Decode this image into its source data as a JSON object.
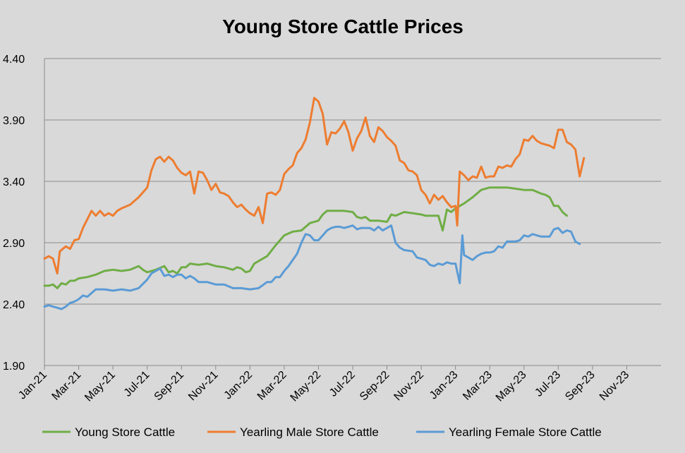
{
  "chart_data": {
    "type": "line",
    "title": "Young Store Cattle Prices",
    "xlabel": "",
    "ylabel": "",
    "ylim": [
      1.9,
      4.4
    ],
    "yticks": [
      "1.90",
      "2.40",
      "2.90",
      "3.40",
      "3.90",
      "4.40"
    ],
    "xticks": [
      "Jan-21",
      "Mar-21",
      "May-21",
      "Jul-21",
      "Sep-21",
      "Nov-21",
      "Jan-22",
      "Mar-22",
      "May-22",
      "Jul-22",
      "Sep-22",
      "Nov-22",
      "Jan-23",
      "Mar-23",
      "May-23",
      "Jul-23",
      "Sep-23",
      "Nov-23"
    ],
    "x_range_months": [
      0,
      36
    ],
    "grid": "horizontal",
    "legend_position": "bottom",
    "series": [
      {
        "name": "Young Store Cattle",
        "color": "#70ad47",
        "points": [
          [
            0,
            2.55
          ],
          [
            0.25,
            2.55
          ],
          [
            0.5,
            2.56
          ],
          [
            0.75,
            2.53
          ],
          [
            1,
            2.57
          ],
          [
            1.25,
            2.56
          ],
          [
            1.5,
            2.59
          ],
          [
            1.75,
            2.59
          ],
          [
            2,
            2.61
          ],
          [
            2.5,
            2.62
          ],
          [
            3,
            2.64
          ],
          [
            3.5,
            2.67
          ],
          [
            4,
            2.68
          ],
          [
            4.5,
            2.67
          ],
          [
            5,
            2.68
          ],
          [
            5.5,
            2.71
          ],
          [
            5.75,
            2.68
          ],
          [
            6,
            2.66
          ],
          [
            6.5,
            2.68
          ],
          [
            7,
            2.71
          ],
          [
            7.25,
            2.66
          ],
          [
            7.5,
            2.67
          ],
          [
            7.75,
            2.65
          ],
          [
            8,
            2.7
          ],
          [
            8.25,
            2.7
          ],
          [
            8.5,
            2.73
          ],
          [
            9,
            2.72
          ],
          [
            9.5,
            2.73
          ],
          [
            10,
            2.71
          ],
          [
            10.5,
            2.7
          ],
          [
            11,
            2.68
          ],
          [
            11.25,
            2.7
          ],
          [
            11.5,
            2.69
          ],
          [
            11.75,
            2.66
          ],
          [
            12,
            2.67
          ],
          [
            12.25,
            2.73
          ],
          [
            12.75,
            2.77
          ],
          [
            13,
            2.79
          ],
          [
            13.5,
            2.88
          ],
          [
            14,
            2.96
          ],
          [
            14.5,
            2.99
          ],
          [
            15,
            3.0
          ],
          [
            15.5,
            3.06
          ],
          [
            16,
            3.08
          ],
          [
            16.25,
            3.13
          ],
          [
            16.5,
            3.16
          ],
          [
            17,
            3.16
          ],
          [
            17.5,
            3.16
          ],
          [
            18,
            3.15
          ],
          [
            18.25,
            3.11
          ],
          [
            18.5,
            3.1
          ],
          [
            18.75,
            3.11
          ],
          [
            19,
            3.08
          ],
          [
            19.5,
            3.08
          ],
          [
            20,
            3.07
          ],
          [
            20.25,
            3.13
          ],
          [
            20.5,
            3.12
          ],
          [
            21,
            3.15
          ],
          [
            21.5,
            3.14
          ],
          [
            22,
            3.13
          ],
          [
            22.25,
            3.12
          ],
          [
            22.5,
            3.12
          ],
          [
            23,
            3.12
          ],
          [
            23.25,
            3.0
          ],
          [
            23.5,
            3.17
          ],
          [
            23.75,
            3.15
          ],
          [
            24,
            3.18
          ],
          [
            24.5,
            3.22
          ],
          [
            25,
            3.27
          ],
          [
            25.5,
            3.33
          ],
          [
            26,
            3.35
          ],
          [
            26.5,
            3.35
          ],
          [
            27,
            3.35
          ],
          [
            27.5,
            3.34
          ],
          [
            28,
            3.33
          ],
          [
            28.5,
            3.33
          ],
          [
            29,
            3.3
          ],
          [
            29.25,
            3.29
          ],
          [
            29.5,
            3.27
          ],
          [
            29.75,
            3.2
          ],
          [
            30,
            3.2
          ],
          [
            30.25,
            3.15
          ],
          [
            30.5,
            3.12
          ]
        ]
      },
      {
        "name": "Yearling Male Store Cattle",
        "color": "#ed7d31",
        "points": [
          [
            0,
            2.77
          ],
          [
            0.25,
            2.79
          ],
          [
            0.5,
            2.77
          ],
          [
            0.75,
            2.65
          ],
          [
            0.9,
            2.83
          ],
          [
            1.25,
            2.87
          ],
          [
            1.5,
            2.85
          ],
          [
            1.75,
            2.92
          ],
          [
            2,
            2.93
          ],
          [
            2.25,
            3.02
          ],
          [
            2.5,
            3.09
          ],
          [
            2.75,
            3.16
          ],
          [
            3,
            3.12
          ],
          [
            3.25,
            3.16
          ],
          [
            3.5,
            3.12
          ],
          [
            3.75,
            3.14
          ],
          [
            4,
            3.12
          ],
          [
            4.25,
            3.16
          ],
          [
            4.5,
            3.18
          ],
          [
            5,
            3.21
          ],
          [
            5.5,
            3.27
          ],
          [
            6,
            3.35
          ],
          [
            6.25,
            3.49
          ],
          [
            6.5,
            3.58
          ],
          [
            6.75,
            3.6
          ],
          [
            7,
            3.56
          ],
          [
            7.25,
            3.6
          ],
          [
            7.5,
            3.57
          ],
          [
            7.75,
            3.51
          ],
          [
            8,
            3.47
          ],
          [
            8.25,
            3.45
          ],
          [
            8.5,
            3.48
          ],
          [
            8.75,
            3.3
          ],
          [
            9,
            3.48
          ],
          [
            9.25,
            3.47
          ],
          [
            9.5,
            3.41
          ],
          [
            9.75,
            3.33
          ],
          [
            10,
            3.38
          ],
          [
            10.25,
            3.31
          ],
          [
            10.5,
            3.3
          ],
          [
            10.75,
            3.28
          ],
          [
            11,
            3.23
          ],
          [
            11.25,
            3.19
          ],
          [
            11.5,
            3.21
          ],
          [
            11.75,
            3.17
          ],
          [
            12,
            3.14
          ],
          [
            12.25,
            3.12
          ],
          [
            12.5,
            3.19
          ],
          [
            12.75,
            3.06
          ],
          [
            13,
            3.3
          ],
          [
            13.25,
            3.31
          ],
          [
            13.5,
            3.29
          ],
          [
            13.75,
            3.33
          ],
          [
            14,
            3.46
          ],
          [
            14.25,
            3.5
          ],
          [
            14.5,
            3.53
          ],
          [
            14.75,
            3.63
          ],
          [
            15,
            3.67
          ],
          [
            15.25,
            3.74
          ],
          [
            15.5,
            3.88
          ],
          [
            15.75,
            4.08
          ],
          [
            16,
            4.05
          ],
          [
            16.25,
            3.95
          ],
          [
            16.5,
            3.7
          ],
          [
            16.75,
            3.8
          ],
          [
            17,
            3.79
          ],
          [
            17.25,
            3.83
          ],
          [
            17.5,
            3.89
          ],
          [
            17.75,
            3.8
          ],
          [
            18,
            3.65
          ],
          [
            18.25,
            3.75
          ],
          [
            18.5,
            3.81
          ],
          [
            18.75,
            3.92
          ],
          [
            19,
            3.77
          ],
          [
            19.25,
            3.72
          ],
          [
            19.5,
            3.84
          ],
          [
            19.75,
            3.81
          ],
          [
            20,
            3.76
          ],
          [
            20.25,
            3.73
          ],
          [
            20.5,
            3.69
          ],
          [
            20.75,
            3.57
          ],
          [
            21,
            3.55
          ],
          [
            21.25,
            3.49
          ],
          [
            21.5,
            3.48
          ],
          [
            21.75,
            3.45
          ],
          [
            22,
            3.33
          ],
          [
            22.25,
            3.29
          ],
          [
            22.5,
            3.22
          ],
          [
            22.75,
            3.29
          ],
          [
            23,
            3.25
          ],
          [
            23.25,
            3.28
          ],
          [
            23.5,
            3.23
          ],
          [
            23.75,
            3.19
          ],
          [
            24,
            3.2
          ],
          [
            24.1,
            3.04
          ],
          [
            24.25,
            3.48
          ],
          [
            24.5,
            3.45
          ],
          [
            24.75,
            3.41
          ],
          [
            25,
            3.44
          ],
          [
            25.25,
            3.43
          ],
          [
            25.5,
            3.52
          ],
          [
            25.75,
            3.43
          ],
          [
            26,
            3.44
          ],
          [
            26.25,
            3.44
          ],
          [
            26.5,
            3.52
          ],
          [
            26.75,
            3.51
          ],
          [
            27,
            3.53
          ],
          [
            27.25,
            3.52
          ],
          [
            27.5,
            3.58
          ],
          [
            27.75,
            3.62
          ],
          [
            28,
            3.74
          ],
          [
            28.25,
            3.73
          ],
          [
            28.5,
            3.77
          ],
          [
            28.75,
            3.73
          ],
          [
            29,
            3.71
          ],
          [
            29.25,
            3.7
          ],
          [
            29.5,
            3.69
          ],
          [
            29.75,
            3.67
          ],
          [
            30,
            3.82
          ],
          [
            30.25,
            3.82
          ],
          [
            30.5,
            3.72
          ],
          [
            30.75,
            3.7
          ],
          [
            31,
            3.66
          ],
          [
            31.25,
            3.44
          ],
          [
            31.5,
            3.59
          ]
        ]
      },
      {
        "name": "Yearling Female Store Cattle",
        "color": "#5b9bd5",
        "points": [
          [
            0,
            2.38
          ],
          [
            0.25,
            2.39
          ],
          [
            0.5,
            2.38
          ],
          [
            0.75,
            2.37
          ],
          [
            1,
            2.36
          ],
          [
            1.25,
            2.38
          ],
          [
            1.5,
            2.41
          ],
          [
            1.75,
            2.42
          ],
          [
            2,
            2.44
          ],
          [
            2.25,
            2.47
          ],
          [
            2.5,
            2.46
          ],
          [
            2.75,
            2.49
          ],
          [
            3,
            2.52
          ],
          [
            3.5,
            2.52
          ],
          [
            4,
            2.51
          ],
          [
            4.5,
            2.52
          ],
          [
            5,
            2.51
          ],
          [
            5.5,
            2.53
          ],
          [
            6,
            2.6
          ],
          [
            6.25,
            2.65
          ],
          [
            6.5,
            2.67
          ],
          [
            6.75,
            2.69
          ],
          [
            7,
            2.63
          ],
          [
            7.25,
            2.64
          ],
          [
            7.5,
            2.62
          ],
          [
            7.75,
            2.64
          ],
          [
            8,
            2.64
          ],
          [
            8.25,
            2.61
          ],
          [
            8.5,
            2.63
          ],
          [
            8.75,
            2.61
          ],
          [
            9,
            2.58
          ],
          [
            9.5,
            2.58
          ],
          [
            10,
            2.56
          ],
          [
            10.5,
            2.56
          ],
          [
            11,
            2.53
          ],
          [
            11.5,
            2.53
          ],
          [
            12,
            2.52
          ],
          [
            12.5,
            2.53
          ],
          [
            13,
            2.58
          ],
          [
            13.25,
            2.58
          ],
          [
            13.5,
            2.62
          ],
          [
            13.75,
            2.62
          ],
          [
            14,
            2.67
          ],
          [
            14.25,
            2.71
          ],
          [
            14.5,
            2.76
          ],
          [
            14.75,
            2.81
          ],
          [
            15,
            2.9
          ],
          [
            15.25,
            2.97
          ],
          [
            15.5,
            2.96
          ],
          [
            15.75,
            2.92
          ],
          [
            16,
            2.92
          ],
          [
            16.25,
            2.96
          ],
          [
            16.5,
            3.0
          ],
          [
            16.75,
            3.02
          ],
          [
            17,
            3.03
          ],
          [
            17.25,
            3.03
          ],
          [
            17.5,
            3.02
          ],
          [
            17.75,
            3.03
          ],
          [
            18,
            3.04
          ],
          [
            18.25,
            3.01
          ],
          [
            18.5,
            3.02
          ],
          [
            19,
            3.02
          ],
          [
            19.25,
            3.0
          ],
          [
            19.5,
            3.03
          ],
          [
            19.75,
            3.0
          ],
          [
            20,
            3.02
          ],
          [
            20.25,
            3.04
          ],
          [
            20.5,
            2.9
          ],
          [
            20.75,
            2.86
          ],
          [
            21,
            2.84
          ],
          [
            21.5,
            2.83
          ],
          [
            21.75,
            2.78
          ],
          [
            22,
            2.77
          ],
          [
            22.25,
            2.76
          ],
          [
            22.5,
            2.72
          ],
          [
            22.75,
            2.71
          ],
          [
            23,
            2.73
          ],
          [
            23.25,
            2.72
          ],
          [
            23.5,
            2.74
          ],
          [
            23.75,
            2.73
          ],
          [
            24,
            2.73
          ],
          [
            24.25,
            2.57
          ],
          [
            24.4,
            2.96
          ],
          [
            24.5,
            2.8
          ],
          [
            24.75,
            2.78
          ],
          [
            25,
            2.76
          ],
          [
            25.25,
            2.79
          ],
          [
            25.5,
            2.81
          ],
          [
            25.75,
            2.82
          ],
          [
            26,
            2.82
          ],
          [
            26.25,
            2.83
          ],
          [
            26.5,
            2.87
          ],
          [
            26.75,
            2.86
          ],
          [
            27,
            2.91
          ],
          [
            27.5,
            2.91
          ],
          [
            27.75,
            2.92
          ],
          [
            28,
            2.96
          ],
          [
            28.25,
            2.95
          ],
          [
            28.5,
            2.97
          ],
          [
            28.75,
            2.96
          ],
          [
            29,
            2.95
          ],
          [
            29.25,
            2.95
          ],
          [
            29.5,
            2.95
          ],
          [
            29.75,
            3.01
          ],
          [
            30,
            3.02
          ],
          [
            30.25,
            2.98
          ],
          [
            30.5,
            3.0
          ],
          [
            30.75,
            2.99
          ],
          [
            31,
            2.91
          ],
          [
            31.25,
            2.89
          ]
        ]
      }
    ]
  }
}
